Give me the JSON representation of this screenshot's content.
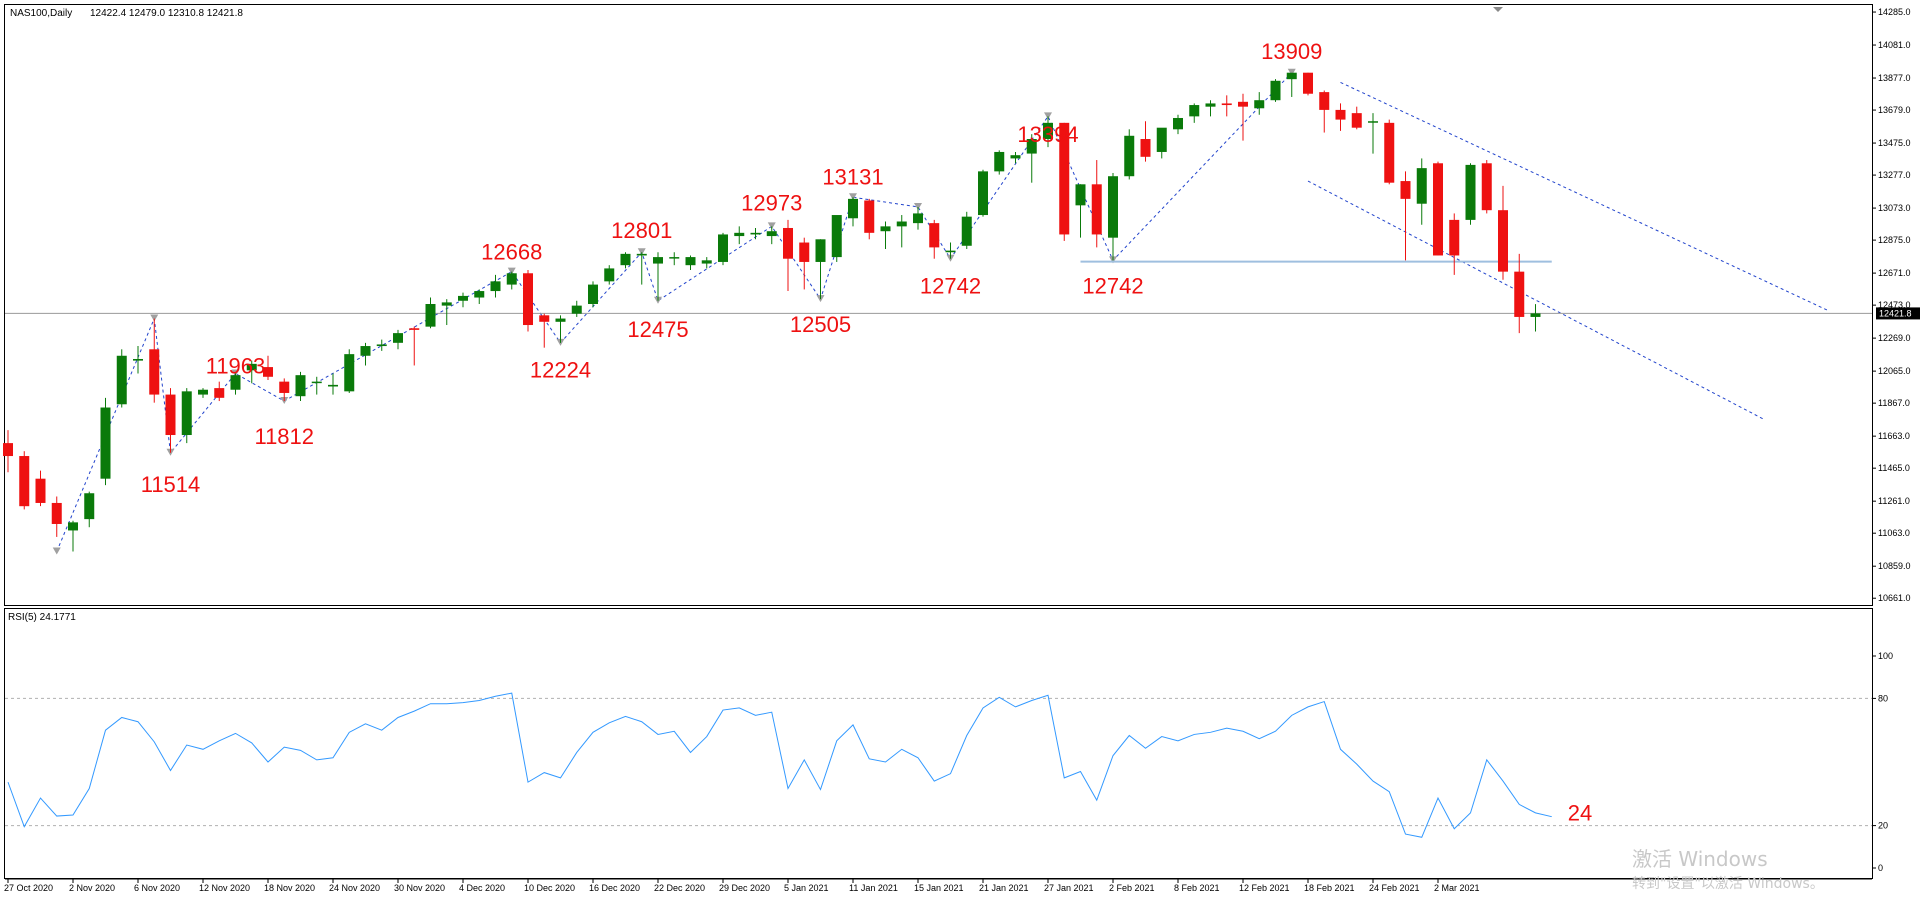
{
  "header": {
    "symbol": "NAS100,Daily",
    "ohlc": "12422.4 12479.0 12310.8 12421.8"
  },
  "rsi_header": "RSI(5) 24.1771",
  "current_price_label": "12421.8",
  "watermark": {
    "line1": "激活 Windows",
    "line2": "转到\"设置\"以激活 Windows。"
  },
  "colors": {
    "bull": "#0a7a0a",
    "bear": "#ee1111",
    "rsi_line": "#3399ff",
    "annotation": "#ee1111",
    "zigzag": "#2244cc",
    "support_line": "#9fbfdf"
  },
  "chart_data": [
    {
      "type": "candlestick",
      "title": "NAS100,Daily",
      "y_ticks": [
        14285.0,
        14081.0,
        13877.0,
        13679.0,
        13475.0,
        13277.0,
        13073.0,
        12875.0,
        12671.0,
        12473.0,
        12269.0,
        12065.0,
        11867.0,
        11663.0,
        11465.0,
        11261.0,
        11063.0,
        10859.0,
        10661.0
      ],
      "ylim": [
        10650,
        14310
      ],
      "x_tick_labels": [
        "27 Oct 2020",
        "2 Nov 2020",
        "6 Nov 2020",
        "12 Nov 2020",
        "18 Nov 2020",
        "24 Nov 2020",
        "30 Nov 2020",
        "4 Dec 2020",
        "10 Dec 2020",
        "16 Dec 2020",
        "22 Dec 2020",
        "29 Dec 2020",
        "5 Jan 2021",
        "11 Jan 2021",
        "15 Jan 2021",
        "21 Jan 2021",
        "27 Jan 2021",
        "2 Feb 2021",
        "8 Feb 2021",
        "12 Feb 2021",
        "18 Feb 2021",
        "24 Feb 2021",
        "2 Mar 2021"
      ],
      "candles": [
        {
          "o": 11620,
          "h": 11700,
          "l": 11440,
          "c": 11540
        },
        {
          "o": 11540,
          "h": 11570,
          "l": 11210,
          "c": 11230
        },
        {
          "o": 11400,
          "h": 11450,
          "l": 11230,
          "c": 11250
        },
        {
          "o": 11250,
          "h": 11290,
          "l": 11040,
          "c": 11120
        },
        {
          "o": 11080,
          "h": 11140,
          "l": 10950,
          "c": 11130
        },
        {
          "o": 11150,
          "h": 11320,
          "l": 11100,
          "c": 11310
        },
        {
          "o": 11400,
          "h": 11900,
          "l": 11360,
          "c": 11840
        },
        {
          "o": 11860,
          "h": 12200,
          "l": 11840,
          "c": 12160
        },
        {
          "o": 12130,
          "h": 12220,
          "l": 12050,
          "c": 12140
        },
        {
          "o": 12200,
          "h": 12390,
          "l": 11870,
          "c": 11920
        },
        {
          "o": 11920,
          "h": 11960,
          "l": 11560,
          "c": 11670
        },
        {
          "o": 11670,
          "h": 11960,
          "l": 11620,
          "c": 11940
        },
        {
          "o": 11920,
          "h": 11960,
          "l": 11900,
          "c": 11950
        },
        {
          "o": 11960,
          "h": 12000,
          "l": 11880,
          "c": 11900
        },
        {
          "o": 11950,
          "h": 12050,
          "l": 11920,
          "c": 12040
        },
        {
          "o": 12070,
          "h": 12130,
          "l": 11990,
          "c": 12110
        },
        {
          "o": 12090,
          "h": 12160,
          "l": 12010,
          "c": 12030
        },
        {
          "o": 12000,
          "h": 12020,
          "l": 11880,
          "c": 11930
        },
        {
          "o": 11910,
          "h": 12060,
          "l": 11880,
          "c": 12040
        },
        {
          "o": 12000,
          "h": 12030,
          "l": 11920,
          "c": 12000
        },
        {
          "o": 11970,
          "h": 12050,
          "l": 11920,
          "c": 11980
        },
        {
          "o": 11940,
          "h": 12200,
          "l": 11930,
          "c": 12170
        },
        {
          "o": 12160,
          "h": 12240,
          "l": 12100,
          "c": 12220
        },
        {
          "o": 12220,
          "h": 12260,
          "l": 12190,
          "c": 12230
        },
        {
          "o": 12240,
          "h": 12320,
          "l": 12200,
          "c": 12300
        },
        {
          "o": 12330,
          "h": 12340,
          "l": 12100,
          "c": 12320
        },
        {
          "o": 12340,
          "h": 12520,
          "l": 12330,
          "c": 12480
        },
        {
          "o": 12470,
          "h": 12510,
          "l": 12350,
          "c": 12490
        },
        {
          "o": 12500,
          "h": 12550,
          "l": 12460,
          "c": 12530
        },
        {
          "o": 12520,
          "h": 12570,
          "l": 12480,
          "c": 12560
        },
        {
          "o": 12560,
          "h": 12660,
          "l": 12520,
          "c": 12620
        },
        {
          "o": 12600,
          "h": 12680,
          "l": 12570,
          "c": 12670
        },
        {
          "o": 12670,
          "h": 12690,
          "l": 12310,
          "c": 12350
        },
        {
          "o": 12410,
          "h": 12420,
          "l": 12210,
          "c": 12370
        },
        {
          "o": 12370,
          "h": 12410,
          "l": 12240,
          "c": 12390
        },
        {
          "o": 12420,
          "h": 12500,
          "l": 12400,
          "c": 12470
        },
        {
          "o": 12480,
          "h": 12620,
          "l": 12460,
          "c": 12600
        },
        {
          "o": 12620,
          "h": 12720,
          "l": 12600,
          "c": 12700
        },
        {
          "o": 12720,
          "h": 12800,
          "l": 12700,
          "c": 12790
        },
        {
          "o": 12780,
          "h": 12800,
          "l": 12600,
          "c": 12790
        },
        {
          "o": 12730,
          "h": 12800,
          "l": 12500,
          "c": 12770
        },
        {
          "o": 12770,
          "h": 12800,
          "l": 12720,
          "c": 12770
        },
        {
          "o": 12720,
          "h": 12780,
          "l": 12690,
          "c": 12770
        },
        {
          "o": 12730,
          "h": 12770,
          "l": 12700,
          "c": 12750
        },
        {
          "o": 12740,
          "h": 12920,
          "l": 12720,
          "c": 12910
        },
        {
          "o": 12900,
          "h": 12960,
          "l": 12850,
          "c": 12920
        },
        {
          "o": 12910,
          "h": 12950,
          "l": 12880,
          "c": 12920
        },
        {
          "o": 12900,
          "h": 12960,
          "l": 12850,
          "c": 12930
        },
        {
          "o": 12950,
          "h": 13000,
          "l": 12560,
          "c": 12760
        },
        {
          "o": 12860,
          "h": 12890,
          "l": 12570,
          "c": 12740
        },
        {
          "o": 12740,
          "h": 12880,
          "l": 12510,
          "c": 12880
        },
        {
          "o": 12770,
          "h": 13020,
          "l": 12740,
          "c": 13030
        },
        {
          "o": 13010,
          "h": 13140,
          "l": 12960,
          "c": 13130
        },
        {
          "o": 13120,
          "h": 13130,
          "l": 12880,
          "c": 12920
        },
        {
          "o": 12930,
          "h": 12990,
          "l": 12820,
          "c": 12960
        },
        {
          "o": 12960,
          "h": 13030,
          "l": 12830,
          "c": 12990
        },
        {
          "o": 12980,
          "h": 13080,
          "l": 12940,
          "c": 13040
        },
        {
          "o": 12980,
          "h": 13000,
          "l": 12760,
          "c": 12830
        },
        {
          "o": 12800,
          "h": 12860,
          "l": 12760,
          "c": 12810
        },
        {
          "o": 12840,
          "h": 13050,
          "l": 12820,
          "c": 13020
        },
        {
          "o": 13030,
          "h": 13310,
          "l": 13020,
          "c": 13300
        },
        {
          "o": 13300,
          "h": 13430,
          "l": 13280,
          "c": 13420
        },
        {
          "o": 13380,
          "h": 13420,
          "l": 13350,
          "c": 13400
        },
        {
          "o": 13410,
          "h": 13530,
          "l": 13230,
          "c": 13500
        },
        {
          "o": 13500,
          "h": 13640,
          "l": 13450,
          "c": 13600
        },
        {
          "o": 13600,
          "h": 13600,
          "l": 12870,
          "c": 12910
        },
        {
          "o": 13090,
          "h": 13220,
          "l": 12890,
          "c": 13220
        },
        {
          "o": 13220,
          "h": 13370,
          "l": 12830,
          "c": 12910
        },
        {
          "o": 12890,
          "h": 13290,
          "l": 12750,
          "c": 13270
        },
        {
          "o": 13270,
          "h": 13560,
          "l": 13250,
          "c": 13520
        },
        {
          "o": 13500,
          "h": 13610,
          "l": 13360,
          "c": 13390
        },
        {
          "o": 13420,
          "h": 13560,
          "l": 13380,
          "c": 13570
        },
        {
          "o": 13560,
          "h": 13650,
          "l": 13530,
          "c": 13630
        },
        {
          "o": 13640,
          "h": 13720,
          "l": 13600,
          "c": 13710
        },
        {
          "o": 13700,
          "h": 13740,
          "l": 13640,
          "c": 13720
        },
        {
          "o": 13720,
          "h": 13770,
          "l": 13640,
          "c": 13710
        },
        {
          "o": 13730,
          "h": 13780,
          "l": 13490,
          "c": 13700
        },
        {
          "o": 13690,
          "h": 13790,
          "l": 13650,
          "c": 13740
        },
        {
          "o": 13740,
          "h": 13870,
          "l": 13730,
          "c": 13860
        },
        {
          "o": 13870,
          "h": 13900,
          "l": 13760,
          "c": 13910
        },
        {
          "o": 13910,
          "h": 13910,
          "l": 13770,
          "c": 13780
        },
        {
          "o": 13790,
          "h": 13800,
          "l": 13540,
          "c": 13680
        },
        {
          "o": 13680,
          "h": 13720,
          "l": 13550,
          "c": 13620
        },
        {
          "o": 13660,
          "h": 13700,
          "l": 13560,
          "c": 13570
        },
        {
          "o": 13610,
          "h": 13660,
          "l": 13410,
          "c": 13610
        },
        {
          "o": 13600,
          "h": 13620,
          "l": 13220,
          "c": 13230
        },
        {
          "o": 13240,
          "h": 13300,
          "l": 12750,
          "c": 13130
        },
        {
          "o": 13100,
          "h": 13380,
          "l": 12970,
          "c": 13320
        },
        {
          "o": 13350,
          "h": 13360,
          "l": 12780,
          "c": 12780
        },
        {
          "o": 13000,
          "h": 13040,
          "l": 12660,
          "c": 12780
        },
        {
          "o": 13000,
          "h": 13350,
          "l": 12970,
          "c": 13340
        },
        {
          "o": 13350,
          "h": 13370,
          "l": 13040,
          "c": 13060
        },
        {
          "o": 13060,
          "h": 13210,
          "l": 12630,
          "c": 12680
        },
        {
          "o": 12680,
          "h": 12790,
          "l": 12300,
          "c": 12400
        },
        {
          "o": 12400,
          "h": 12479,
          "l": 12310,
          "c": 12421.8
        }
      ],
      "current_price": 12421.8,
      "support_level": 12742,
      "annotations": [
        {
          "text": "11514",
          "idx": 10,
          "price": 11514,
          "pos": "below"
        },
        {
          "text": "11963",
          "idx": 14,
          "price": 11963,
          "pos": "above"
        },
        {
          "text": "11812",
          "idx": 17,
          "price": 11812,
          "pos": "below"
        },
        {
          "text": "12668",
          "idx": 31,
          "price": 12668,
          "pos": "above"
        },
        {
          "text": "12224",
          "idx": 34,
          "price": 12224,
          "pos": "below"
        },
        {
          "text": "12801",
          "idx": 39,
          "price": 12801,
          "pos": "above"
        },
        {
          "text": "12475",
          "idx": 40,
          "price": 12475,
          "pos": "below"
        },
        {
          "text": "12973",
          "idx": 47,
          "price": 12973,
          "pos": "above"
        },
        {
          "text": "12505",
          "idx": 50,
          "price": 12505,
          "pos": "below"
        },
        {
          "text": "13131",
          "idx": 52,
          "price": 13131,
          "pos": "above"
        },
        {
          "text": "12742",
          "idx": 58,
          "price": 12742,
          "pos": "below"
        },
        {
          "text": "13394",
          "idx": 64,
          "price": 13394,
          "pos": "above"
        },
        {
          "text": "12742",
          "idx": 68,
          "price": 12742,
          "pos": "below"
        },
        {
          "text": "13909",
          "idx": 79,
          "price": 13909,
          "pos": "above"
        }
      ],
      "zigzag": [
        {
          "idx": 3,
          "price": 10950
        },
        {
          "idx": 9,
          "price": 12390
        },
        {
          "idx": 10,
          "price": 11560
        },
        {
          "idx": 14,
          "price": 12050
        },
        {
          "idx": 17,
          "price": 11880
        },
        {
          "idx": 31,
          "price": 12680
        },
        {
          "idx": 34,
          "price": 12240
        },
        {
          "idx": 39,
          "price": 12800
        },
        {
          "idx": 40,
          "price": 12500
        },
        {
          "idx": 47,
          "price": 12960
        },
        {
          "idx": 50,
          "price": 12510
        },
        {
          "idx": 52,
          "price": 13140
        },
        {
          "idx": 56,
          "price": 13080
        },
        {
          "idx": 58,
          "price": 12760
        },
        {
          "idx": 64,
          "price": 13640
        },
        {
          "idx": 68,
          "price": 12750
        },
        {
          "idx": 79,
          "price": 13910
        }
      ],
      "channel_upper": [
        {
          "idx": 82,
          "price": 13850
        },
        {
          "idx": 112,
          "price": 12440
        }
      ],
      "channel_lower": [
        {
          "idx": 80,
          "price": 13240
        },
        {
          "idx": 108,
          "price": 11770
        }
      ]
    },
    {
      "type": "line",
      "title": "RSI(5) 24.1771",
      "ylim": [
        0,
        100
      ],
      "y_ticks": [
        100,
        80,
        20,
        0
      ],
      "levels": [
        80,
        20
      ],
      "values": [
        40.5,
        19.5,
        33,
        24.5,
        25,
        37.5,
        65,
        71,
        69,
        59.5,
        46,
        58,
        56,
        60,
        63.5,
        59,
        50,
        57,
        55.5,
        51,
        52,
        64,
        68,
        65,
        71,
        74,
        77.5,
        77.5,
        78,
        79,
        81,
        82.5,
        40.5,
        45,
        42.5,
        54.5,
        64,
        68.5,
        71.5,
        69,
        63,
        64.5,
        54.5,
        62,
        74.5,
        75.5,
        72,
        73.5,
        37.5,
        51,
        37,
        60,
        67.5,
        51.5,
        50,
        56,
        52,
        41,
        44.5,
        62.5,
        75.5,
        80.5,
        76,
        79,
        81.5,
        42.5,
        45.5,
        32,
        53,
        62.5,
        56.5,
        62,
        60,
        63,
        64,
        66,
        64.5,
        61,
        64.5,
        72,
        76,
        78.5,
        56,
        49,
        41,
        36,
        16,
        14.5,
        33,
        18.5,
        26,
        51,
        41,
        30,
        26,
        24.2
      ]
    }
  ]
}
